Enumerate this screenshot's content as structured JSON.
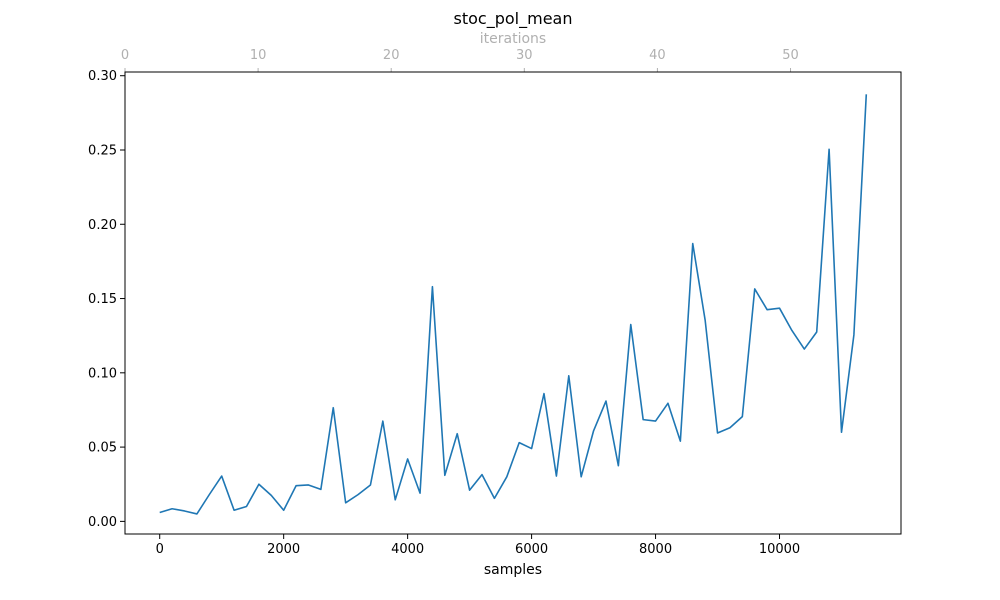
{
  "chart_data": {
    "type": "line",
    "title": "stoc_pol_mean",
    "xlabel": "samples",
    "ylabel": "",
    "top_xlabel": "iterations",
    "xlim": [
      -560,
      11960
    ],
    "ylim": [
      -0.0085,
      0.3025
    ],
    "top_xlim": [
      0,
      58.3
    ],
    "xticks": [
      0,
      2000,
      4000,
      6000,
      8000,
      10000
    ],
    "xtick_labels": [
      "0",
      "2000",
      "4000",
      "6000",
      "8000",
      "10000"
    ],
    "yticks": [
      0.0,
      0.05,
      0.1,
      0.15,
      0.2,
      0.25,
      0.3
    ],
    "ytick_labels": [
      "0.00",
      "0.05",
      "0.10",
      "0.15",
      "0.20",
      "0.25",
      "0.30"
    ],
    "top_xticks": [
      0,
      10,
      20,
      30,
      40,
      50
    ],
    "top_xtick_labels": [
      "0",
      "10",
      "20",
      "30",
      "40",
      "50"
    ],
    "grid": false,
    "line_color": "#1f77b4",
    "top_axis_color": "#b0b0b0",
    "series": [
      {
        "x": [
          0,
          200,
          400,
          600,
          800,
          1000,
          1200,
          1400,
          1600,
          1800,
          2000,
          2200,
          2400,
          2600,
          2800,
          3000,
          3200,
          3400,
          3600,
          3800,
          4000,
          4200,
          4400,
          4600,
          4800,
          5000,
          5200,
          5400,
          5600,
          5800,
          6000,
          6200,
          6400,
          6600,
          6800,
          7000,
          7200,
          7400,
          7600,
          7800,
          8000,
          8200,
          8400,
          8600,
          8800,
          9000,
          9200,
          9400,
          9600,
          9800,
          10000,
          10200,
          10400,
          10600,
          10800,
          11000,
          11200,
          11400
        ],
        "y": [
          0.006,
          0.0085,
          0.007,
          0.005,
          0.018,
          0.0305,
          0.0075,
          0.01,
          0.025,
          0.0175,
          0.0075,
          0.024,
          0.0245,
          0.0215,
          0.0765,
          0.0125,
          0.018,
          0.0245,
          0.0675,
          0.0145,
          0.042,
          0.019,
          0.158,
          0.031,
          0.059,
          0.021,
          0.0315,
          0.0155,
          0.03,
          0.053,
          0.049,
          0.086,
          0.0305,
          0.098,
          0.03,
          0.061,
          0.081,
          0.0375,
          0.1325,
          0.0685,
          0.0675,
          0.0795,
          0.054,
          0.187,
          0.1355,
          0.0595,
          0.063,
          0.0705,
          0.1565,
          0.1425,
          0.1435,
          0.1285,
          0.116,
          0.1275,
          0.2505,
          0.06,
          0.1255,
          0.2875
        ]
      }
    ]
  }
}
